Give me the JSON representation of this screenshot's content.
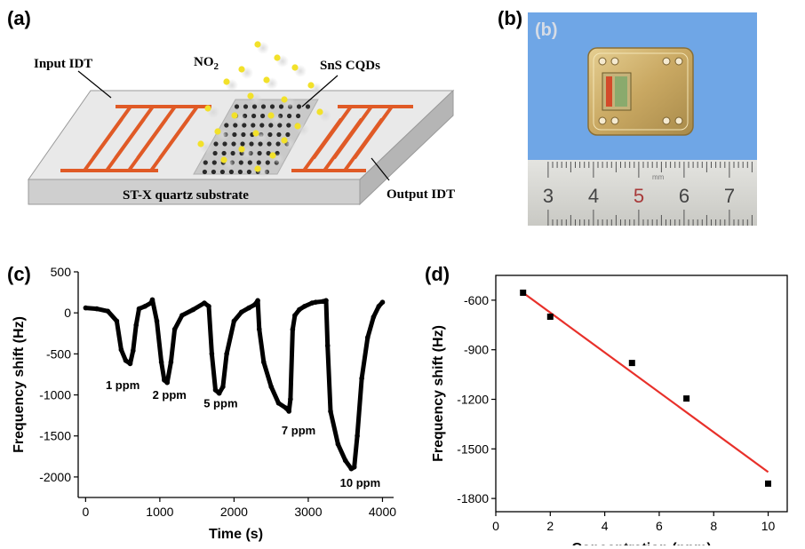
{
  "panels": {
    "a": {
      "label": "(a)",
      "input_idt": "Input IDT",
      "output_idt": "Output IDT",
      "gas_base": "NO",
      "gas_sub": "2",
      "cqd": "SnS CQDs",
      "substrate": "ST-X quartz substrate"
    },
    "b": {
      "label": "(b)",
      "inner_label": "(b)",
      "ruler_numbers": [
        "3",
        "4",
        "5",
        "6",
        "7"
      ],
      "ruler_unit": "mm"
    },
    "c": {
      "label": "(c)"
    },
    "d": {
      "label": "(d)"
    }
  },
  "colors": {
    "electrode": "#e05a26",
    "particle": "#f2e12a",
    "dot": "#2a2a2a",
    "photo_bg": "#6fa6e6",
    "fit_line": "#e8302a"
  },
  "chart_data": [
    {
      "id": "c",
      "type": "line",
      "title": "",
      "xlabel": "Time (s)",
      "ylabel": "Frequency shift (Hz)",
      "xlim": [
        -100,
        4150
      ],
      "ylim": [
        -2250,
        500
      ],
      "xticks": [
        0,
        1000,
        2000,
        3000,
        4000
      ],
      "yticks": [
        500,
        0,
        -500,
        -1000,
        -1500,
        -2000
      ],
      "series": [
        {
          "x": [
            0,
            150,
            300,
            420,
            480,
            540,
            600,
            640,
            680,
            720,
            800,
            880,
            900,
            960,
            1020,
            1060,
            1100,
            1150,
            1200,
            1300,
            1450,
            1600,
            1660,
            1700,
            1750,
            1800,
            1850,
            1900,
            2000,
            2100,
            2200,
            2280,
            2320,
            2340,
            2400,
            2500,
            2600,
            2700,
            2740,
            2760,
            2790,
            2820,
            2880,
            2950,
            3050,
            3100,
            3200,
            3240,
            3260,
            3300,
            3400,
            3500,
            3580,
            3620,
            3660,
            3720,
            3800,
            3880,
            3950,
            4000
          ],
          "y": [
            60,
            50,
            20,
            -100,
            -450,
            -580,
            -620,
            -460,
            -150,
            50,
            80,
            120,
            160,
            -100,
            -600,
            -820,
            -850,
            -600,
            -200,
            -30,
            40,
            120,
            80,
            -500,
            -940,
            -980,
            -900,
            -500,
            -100,
            10,
            60,
            100,
            150,
            -200,
            -600,
            -900,
            -1100,
            -1160,
            -1200,
            -1050,
            -200,
            -30,
            40,
            80,
            120,
            130,
            140,
            150,
            -400,
            -1200,
            -1600,
            -1800,
            -1900,
            -1880,
            -1500,
            -800,
            -300,
            -50,
            80,
            130
          ]
        }
      ],
      "annotations": [
        {
          "text": "1 ppm",
          "x": 500,
          "y": -930
        },
        {
          "text": "2 ppm",
          "x": 1130,
          "y": -1050
        },
        {
          "text": "5 ppm",
          "x": 1820,
          "y": -1150
        },
        {
          "text": "7 ppm",
          "x": 2870,
          "y": -1480
        },
        {
          "text": "10 ppm",
          "x": 3700,
          "y": -2120
        }
      ]
    },
    {
      "id": "d",
      "type": "scatter",
      "title": "",
      "xlabel": "Concentration (ppm)",
      "ylabel": "Frequency shift (Hz)",
      "xlim": [
        0,
        10.7
      ],
      "ylim": [
        -1880,
        -450
      ],
      "xticks": [
        0,
        2,
        4,
        6,
        8,
        10
      ],
      "yticks": [
        -600,
        -900,
        -1200,
        -1500,
        -1800
      ],
      "points": {
        "x": [
          1,
          2,
          5,
          7,
          10
        ],
        "y": [
          -555,
          -700,
          -980,
          -1195,
          -1710
        ]
      },
      "fit": {
        "x": [
          1,
          10
        ],
        "y": [
          -555,
          -1640
        ]
      }
    }
  ]
}
